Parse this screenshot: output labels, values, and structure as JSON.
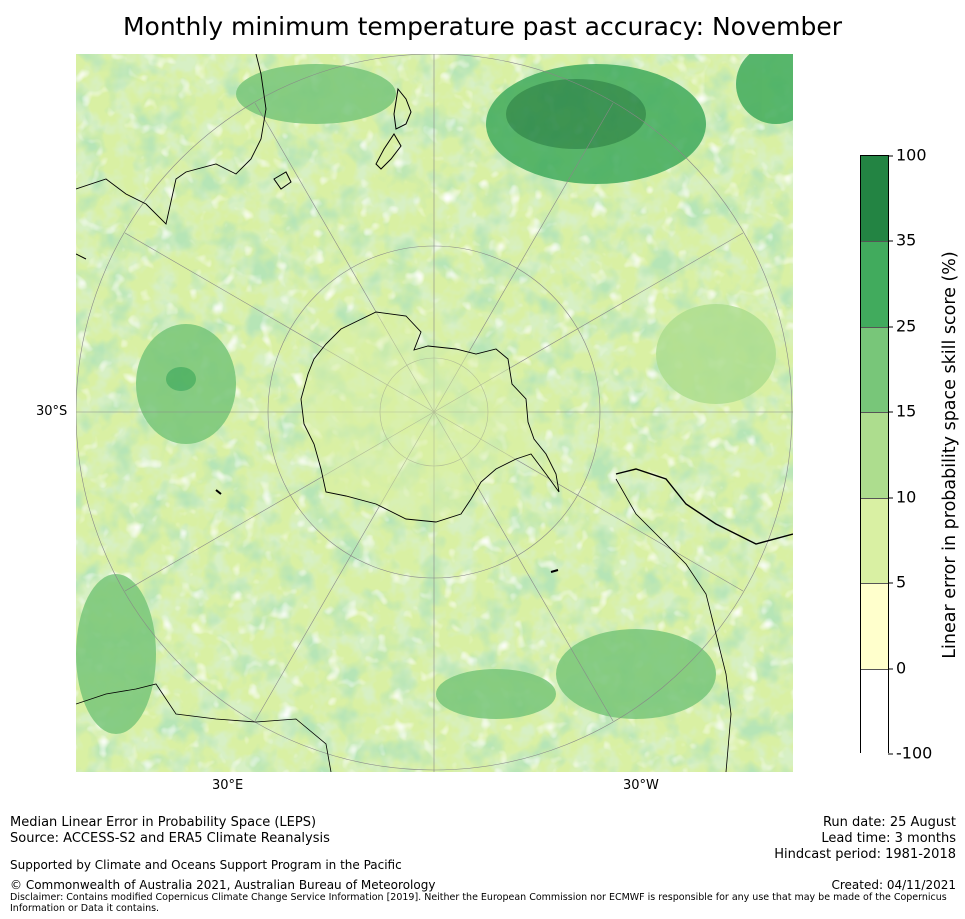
{
  "title": "Monthly minimum temperature past accuracy: November",
  "map": {
    "projection": "south-polar-stereographic",
    "lat_label": "30°S",
    "lon_labels": [
      "30°E",
      "30°W"
    ]
  },
  "colorbar": {
    "label": "Linear error in probability space skill score (%)",
    "ticks": [
      "100",
      "35",
      "25",
      "15",
      "10",
      "5",
      "0",
      "-100"
    ],
    "bins": [
      {
        "range": "35 to 100",
        "color": "#238443"
      },
      {
        "range": "25 to 35",
        "color": "#41ab5d"
      },
      {
        "range": "15 to 25",
        "color": "#78c679"
      },
      {
        "range": "10 to 15",
        "color": "#addd8e"
      },
      {
        "range": "5 to 10",
        "color": "#d9f0a3"
      },
      {
        "range": "0 to 5",
        "color": "#ffffcc"
      },
      {
        "range": "-100 to 0",
        "color": "#ffffff"
      }
    ]
  },
  "footer": {
    "left_line1": "Median Linear Error in Probability Space (LEPS)",
    "left_line2": "Source: ACCESS-S2 and ERA5 Climate Reanalysis",
    "support": "Supported by Climate and Oceans Support Program in the Pacific",
    "copyright": "© Commonwealth of Australia 2021, Australian Bureau of Meteorology",
    "disclaimer_line1": "Disclaimer: Contains modified Copernicus Climate Change Service Information [2019]. Neither the European Commission nor ECMWF is responsible for any use that may be made of the Copernicus",
    "disclaimer_line2": "Information or Data it contains.",
    "run_date": "Run date: 25 August",
    "lead_time": "Lead time: 3 months",
    "hindcast": "Hindcast period: 1981-2018",
    "created": "Created: 04/11/2021"
  }
}
